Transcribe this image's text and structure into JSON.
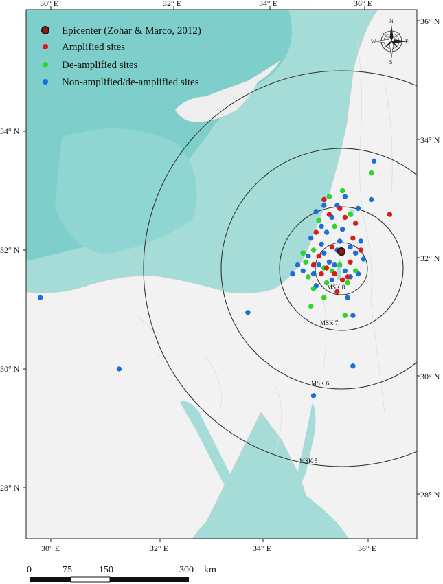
{
  "map": {
    "longitude_ticks": [
      "30° E",
      "32° E",
      "34° E",
      "36° E"
    ],
    "latitude_ticks": [
      "28° N",
      "30° N",
      "32° N",
      "34° N"
    ],
    "right_latitude_ticks": [
      "28° N",
      "30° N",
      "32° N",
      "34° N",
      "36° N"
    ],
    "legend": {
      "epicenter": "Epicenter (Zohar & Marco, 2012)",
      "amplified": "Amplified sites",
      "deamplified": "De-amplified sites",
      "nonamplified": "Non-amplified/de-amplified sites"
    },
    "isoseismals": [
      "MSK 8",
      "MSK 7",
      "MSK 6",
      "MSK 5"
    ],
    "compass": {
      "n": "N",
      "s": "S",
      "e": "E",
      "w": "W"
    },
    "scale": {
      "labels": [
        "0",
        "75",
        "150",
        "300"
      ],
      "unit": "km"
    },
    "colors": {
      "sea": "#a5dcd8",
      "deep_sea": "#7ecfcb",
      "land": "#f2f2f2",
      "amplified": "#e01818",
      "deamplified": "#22dd22",
      "nonamplified": "#1a6fe0",
      "epicenter": "#8b1a1a"
    },
    "epicenter": {
      "lon": 35.55,
      "lat": 31.75
    },
    "sites": {
      "amplified": [
        [
          35.0,
          31.75
        ],
        [
          35.1,
          31.9
        ],
        [
          35.25,
          31.7
        ],
        [
          35.4,
          31.6
        ],
        [
          35.55,
          31.5
        ],
        [
          35.7,
          31.8
        ],
        [
          35.75,
          32.2
        ],
        [
          35.3,
          32.6
        ],
        [
          35.5,
          32.7
        ],
        [
          35.2,
          32.85
        ],
        [
          35.6,
          32.55
        ],
        [
          35.9,
          32.0
        ],
        [
          35.45,
          31.3
        ],
        [
          36.45,
          32.6
        ],
        [
          35.65,
          31.55
        ],
        [
          35.05,
          32.3
        ],
        [
          35.8,
          32.45
        ],
        [
          35.15,
          31.6
        ],
        [
          35.35,
          32.05
        ],
        [
          35.55,
          31.95
        ]
      ],
      "deamplified": [
        [
          34.85,
          31.8
        ],
        [
          34.9,
          31.55
        ],
        [
          35.0,
          32.0
        ],
        [
          35.2,
          31.7
        ],
        [
          35.35,
          31.65
        ],
        [
          35.5,
          31.75
        ],
        [
          35.65,
          31.45
        ],
        [
          35.1,
          32.5
        ],
        [
          35.3,
          32.9
        ],
        [
          35.55,
          33.0
        ],
        [
          35.2,
          31.2
        ],
        [
          35.6,
          30.9
        ],
        [
          34.95,
          31.05
        ],
        [
          35.8,
          31.65
        ],
        [
          36.1,
          33.3
        ],
        [
          35.0,
          31.35
        ],
        [
          35.4,
          32.4
        ],
        [
          34.8,
          31.95
        ],
        [
          35.25,
          31.45
        ],
        [
          35.7,
          32.6
        ]
      ],
      "nonamplified": [
        [
          34.7,
          31.75
        ],
        [
          34.8,
          31.65
        ],
        [
          34.9,
          31.9
        ],
        [
          35.0,
          31.6
        ],
        [
          35.1,
          31.75
        ],
        [
          35.15,
          32.1
        ],
        [
          35.2,
          31.95
        ],
        [
          35.3,
          31.8
        ],
        [
          35.4,
          31.75
        ],
        [
          35.45,
          32.0
        ],
        [
          35.6,
          31.65
        ],
        [
          35.7,
          31.55
        ],
        [
          35.8,
          31.95
        ],
        [
          35.9,
          32.15
        ],
        [
          35.25,
          32.3
        ],
        [
          35.35,
          32.55
        ],
        [
          35.45,
          32.75
        ],
        [
          35.6,
          32.9
        ],
        [
          35.85,
          32.7
        ],
        [
          36.1,
          32.85
        ],
        [
          36.15,
          33.5
        ],
        [
          35.05,
          32.65
        ],
        [
          35.15,
          32.4
        ],
        [
          35.55,
          32.35
        ],
        [
          35.7,
          32.05
        ],
        [
          34.6,
          31.6
        ],
        [
          35.05,
          31.4
        ],
        [
          35.35,
          31.5
        ],
        [
          35.65,
          31.2
        ],
        [
          35.75,
          30.9
        ],
        [
          35.75,
          30.05
        ],
        [
          35.0,
          29.55
        ],
        [
          33.75,
          30.95
        ],
        [
          29.8,
          31.2
        ],
        [
          31.3,
          30.0
        ],
        [
          35.95,
          31.85
        ],
        [
          35.5,
          32.15
        ],
        [
          35.2,
          32.75
        ],
        [
          34.95,
          32.2
        ],
        [
          35.85,
          31.6
        ]
      ]
    }
  }
}
